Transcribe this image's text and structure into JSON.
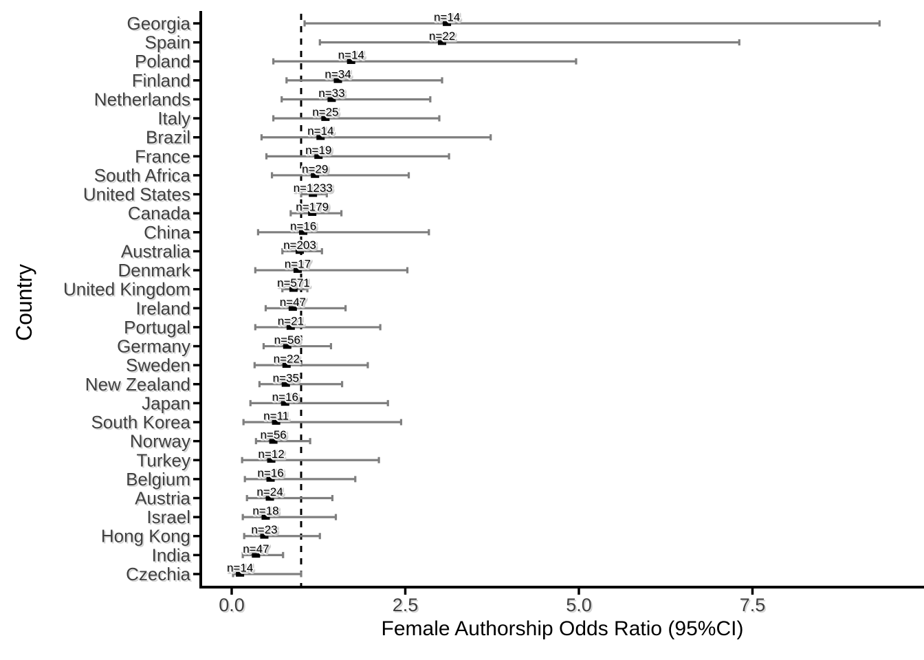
{
  "figure_title": "Female authorship odds ratio forest plot",
  "colors": {
    "background": "#ffffff",
    "axis_line": "#000000",
    "axis_text": "#404040",
    "axis_title": "#000000",
    "error_bar": "#7f7f7f",
    "point_estimate": "#000000",
    "n_label": "#000000",
    "reference_line": "#000000"
  },
  "chart_data": {
    "type": "scatter",
    "subtype": "forest-plot-with-95ci-error-bars",
    "title": "",
    "xlabel": "Female Authorship Odds Ratio (95%CI)",
    "ylabel": "Country",
    "x_ticks": [
      0.0,
      2.5,
      5.0,
      7.5
    ],
    "x_tick_labels": [
      "0.0",
      "2.5",
      "5.0",
      "7.5"
    ],
    "xlim": [
      -0.45,
      9.97
    ],
    "reference_line_x": 1.0,
    "reference_line_style": "dashed",
    "grid": "off",
    "legend": "none",
    "rows": [
      {
        "country": "Georgia",
        "n_label": "n=14",
        "or": 3.1,
        "ci_low": 1.05,
        "ci_high": 9.33
      },
      {
        "country": "Spain",
        "n_label": "n=22",
        "or": 3.03,
        "ci_low": 1.27,
        "ci_high": 7.31
      },
      {
        "country": "Poland",
        "n_label": "n=14",
        "or": 1.72,
        "ci_low": 0.6,
        "ci_high": 4.96
      },
      {
        "country": "Finland",
        "n_label": "n=34",
        "or": 1.53,
        "ci_low": 0.79,
        "ci_high": 3.03
      },
      {
        "country": "Netherlands",
        "n_label": "n=33",
        "or": 1.44,
        "ci_low": 0.72,
        "ci_high": 2.86
      },
      {
        "country": "Italy",
        "n_label": "n=25",
        "or": 1.35,
        "ci_low": 0.6,
        "ci_high": 2.99
      },
      {
        "country": "Brazil",
        "n_label": "n=14",
        "or": 1.28,
        "ci_low": 0.43,
        "ci_high": 3.73
      },
      {
        "country": "France",
        "n_label": "n=19",
        "or": 1.25,
        "ci_low": 0.5,
        "ci_high": 3.13
      },
      {
        "country": "South Africa",
        "n_label": "n=29",
        "or": 1.2,
        "ci_low": 0.58,
        "ci_high": 2.55
      },
      {
        "country": "United States",
        "n_label": "n=1233",
        "or": 1.17,
        "ci_low": 1.0,
        "ci_high": 1.37
      },
      {
        "country": "Canada",
        "n_label": "n=179",
        "or": 1.16,
        "ci_low": 0.85,
        "ci_high": 1.58
      },
      {
        "country": "China",
        "n_label": "n=16",
        "or": 1.03,
        "ci_low": 0.38,
        "ci_high": 2.84
      },
      {
        "country": "Australia",
        "n_label": "n=203",
        "or": 0.98,
        "ci_low": 0.73,
        "ci_high": 1.3
      },
      {
        "country": "Denmark",
        "n_label": "n=17",
        "or": 0.95,
        "ci_low": 0.34,
        "ci_high": 2.53
      },
      {
        "country": "United Kingdom",
        "n_label": "n=571",
        "or": 0.89,
        "ci_low": 0.73,
        "ci_high": 1.09
      },
      {
        "country": "Ireland",
        "n_label": "n=47",
        "or": 0.88,
        "ci_low": 0.49,
        "ci_high": 1.64
      },
      {
        "country": "Portugal",
        "n_label": "n=21",
        "or": 0.85,
        "ci_low": 0.34,
        "ci_high": 2.14
      },
      {
        "country": "Germany",
        "n_label": "n=56",
        "or": 0.8,
        "ci_low": 0.46,
        "ci_high": 1.43
      },
      {
        "country": "Sweden",
        "n_label": "n=22",
        "or": 0.79,
        "ci_low": 0.33,
        "ci_high": 1.96
      },
      {
        "country": "New Zealand",
        "n_label": "n=35",
        "or": 0.78,
        "ci_low": 0.4,
        "ci_high": 1.59
      },
      {
        "country": "Japan",
        "n_label": "n=16",
        "or": 0.77,
        "ci_low": 0.27,
        "ci_high": 2.25
      },
      {
        "country": "South Korea",
        "n_label": "n=11",
        "or": 0.64,
        "ci_low": 0.17,
        "ci_high": 2.44
      },
      {
        "country": "Norway",
        "n_label": "n=56",
        "or": 0.6,
        "ci_low": 0.35,
        "ci_high": 1.13
      },
      {
        "country": "Turkey",
        "n_label": "n=12",
        "or": 0.57,
        "ci_low": 0.15,
        "ci_high": 2.12
      },
      {
        "country": "Belgium",
        "n_label": "n=16",
        "or": 0.56,
        "ci_low": 0.19,
        "ci_high": 1.78
      },
      {
        "country": "Austria",
        "n_label": "n=24",
        "or": 0.55,
        "ci_low": 0.22,
        "ci_high": 1.45
      },
      {
        "country": "Israel",
        "n_label": "n=18",
        "or": 0.49,
        "ci_low": 0.16,
        "ci_high": 1.5
      },
      {
        "country": "Hong Kong",
        "n_label": "n=23",
        "or": 0.47,
        "ci_low": 0.18,
        "ci_high": 1.27
      },
      {
        "country": "India",
        "n_label": "n=47",
        "or": 0.35,
        "ci_low": 0.16,
        "ci_high": 0.74
      },
      {
        "country": "Czechia",
        "n_label": "n=14",
        "or": 0.12,
        "ci_low": 0.02,
        "ci_high": 1.0
      }
    ]
  }
}
